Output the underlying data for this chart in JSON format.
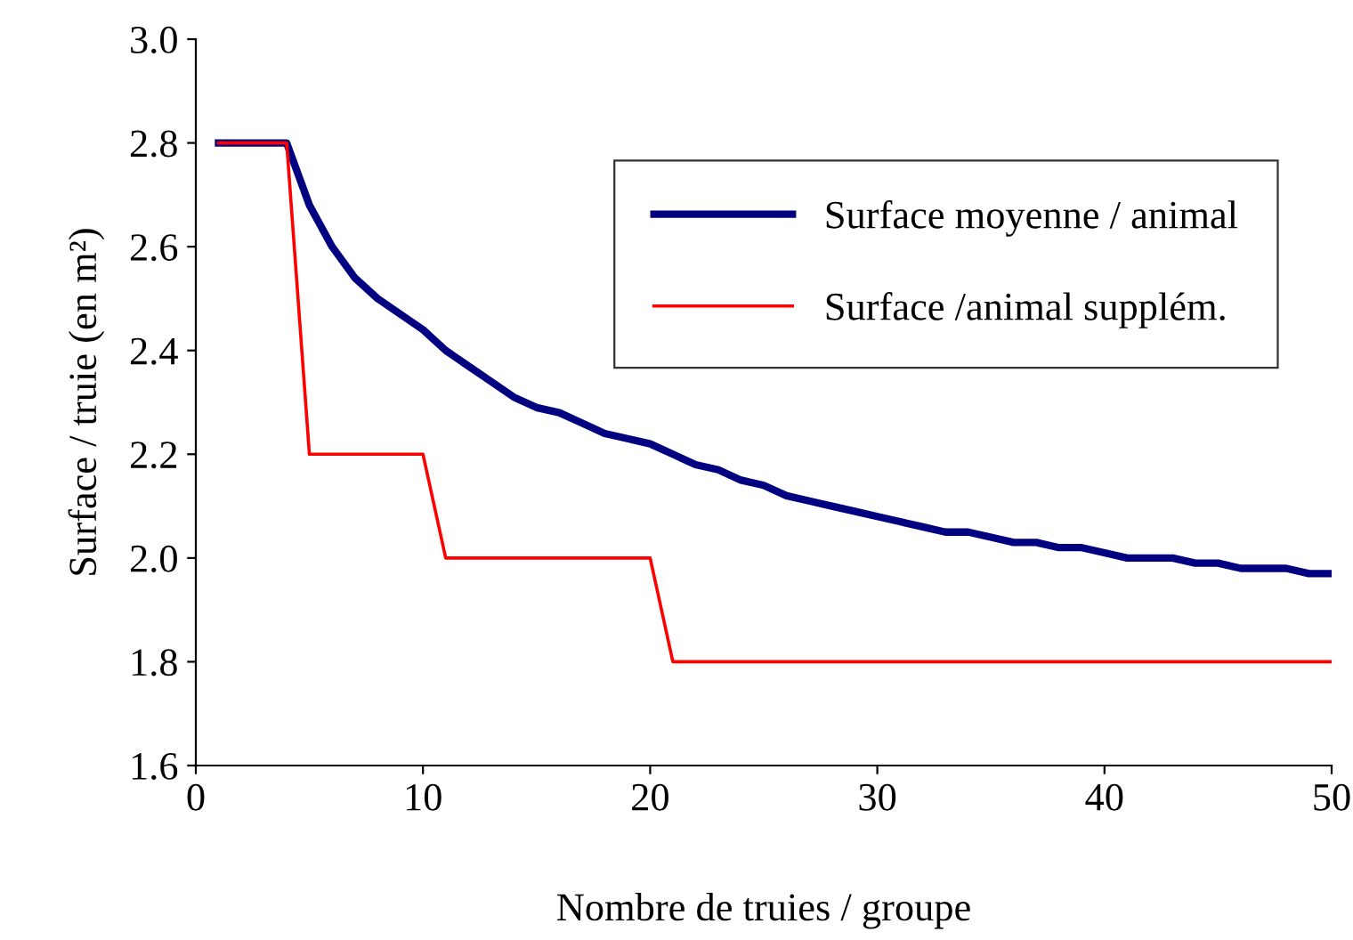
{
  "chart_data": {
    "type": "line",
    "xlabel": "Nombre de truies / groupe",
    "ylabel": "Surface / truie (en m²)",
    "x": [
      1,
      2,
      3,
      4,
      5,
      6,
      7,
      8,
      9,
      10,
      11,
      12,
      13,
      14,
      15,
      16,
      17,
      18,
      19,
      20,
      21,
      22,
      23,
      24,
      25,
      26,
      27,
      28,
      29,
      30,
      31,
      32,
      33,
      34,
      35,
      36,
      37,
      38,
      39,
      40,
      41,
      42,
      43,
      44,
      45,
      46,
      47,
      48,
      49,
      50
    ],
    "series": [
      {
        "name": "Surface moyenne / animal",
        "color": "#000080",
        "values": [
          2.8,
          2.8,
          2.8,
          2.8,
          2.68,
          2.6,
          2.54,
          2.5,
          2.47,
          2.44,
          2.4,
          2.37,
          2.34,
          2.31,
          2.29,
          2.28,
          2.26,
          2.24,
          2.23,
          2.22,
          2.2,
          2.18,
          2.17,
          2.15,
          2.14,
          2.12,
          2.11,
          2.1,
          2.09,
          2.08,
          2.07,
          2.06,
          2.05,
          2.05,
          2.04,
          2.03,
          2.03,
          2.02,
          2.02,
          2.01,
          2.0,
          2.0,
          2.0,
          1.99,
          1.99,
          1.98,
          1.98,
          1.98,
          1.97,
          1.97
        ]
      },
      {
        "name": "Surface /animal supplém.",
        "color": "#ff0000",
        "x": [
          1,
          4,
          5,
          10,
          11,
          20,
          21,
          50
        ],
        "values": [
          2.8,
          2.8,
          2.2,
          2.2,
          2.0,
          2.0,
          1.8,
          1.8
        ]
      }
    ],
    "xlim": [
      0,
      50
    ],
    "xticks": [
      0,
      10,
      20,
      30,
      40,
      50
    ],
    "ylim": [
      1.6,
      3.0
    ],
    "yticks": [
      {
        "value": 1.6,
        "label": "1.6"
      },
      {
        "value": 1.8,
        "label": "1.8"
      },
      {
        "value": 2.0,
        "label": "2.0"
      },
      {
        "value": 2.2,
        "label": "2.2"
      },
      {
        "value": 2.4,
        "label": "2.4"
      },
      {
        "value": 2.6,
        "label": "2.6"
      },
      {
        "value": 2.8,
        "label": "2.8"
      },
      {
        "value": 3.0,
        "label": "3.0"
      }
    ],
    "legend": "top right",
    "grid": false
  }
}
